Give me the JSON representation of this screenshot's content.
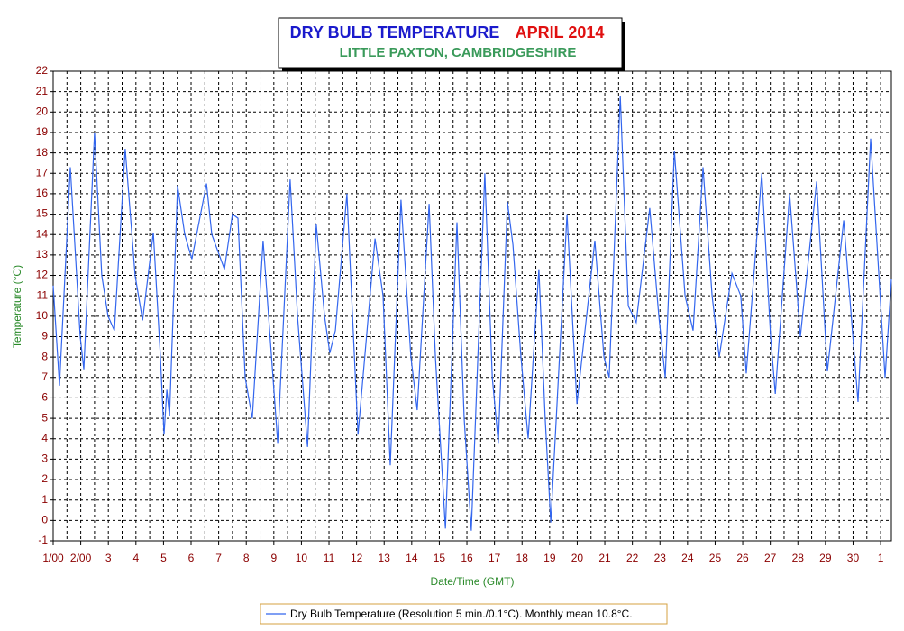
{
  "chart_data": {
    "type": "line",
    "title": "DRY BULB TEMPERATURE",
    "title_period": "APRIL 2014",
    "subtitle": "LITTLE PAXTON, CAMBRIDGESHIRE",
    "ylabel": "Temperature (°C)",
    "xlabel": "Date/Time (GMT)",
    "x": [
      0,
      0.23,
      0.62,
      0.98,
      1.11,
      1.5,
      1.76,
      1.99,
      2.22,
      2.61,
      2.97,
      3.24,
      3.63,
      3.89,
      4.02,
      4.12,
      4.22,
      4.51,
      4.77,
      5.03,
      5.56,
      5.75,
      6.21,
      6.5,
      6.7,
      6.96,
      7.22,
      7.61,
      7.81,
      8.14,
      8.59,
      8.86,
      9.22,
      9.54,
      9.84,
      10.03,
      10.23,
      10.65,
      10.82,
      11.05,
      11.67,
      11.96,
      12.22,
      12.61,
      12.97,
      13.2,
      13.63,
      13.86,
      14.22,
      14.64,
      14.9,
      15.16,
      15.65,
      15.92,
      16.14,
      16.47,
      16.67,
      16.96,
      17.22,
      17.61,
      17.84,
      18.04,
      18.63,
      18.99,
      19.64,
      19.97,
      20.16,
      20.56,
      20.85,
      21.14,
      21.63,
      21.96,
      22.19,
      22.52,
      22.91,
      23.2,
      23.56,
      23.89,
      24.15,
      24.61,
      24.93,
      25.13,
      25.69,
      26.01,
      26.18,
      26.7,
      27.09,
      27.68,
      28.07,
      28.66,
      29.18,
      29.64,
      30.16,
      30.39
    ],
    "series": [
      {
        "name": "Dry Bulb Temperature (Resolution 5 min./0.1°C). Monthly mean 10.8°C.",
        "color": "#3366ee",
        "values": [
          11.5,
          6.6,
          17.3,
          9,
          7.4,
          19,
          12,
          10,
          9.3,
          18.2,
          12,
          9.8,
          14.1,
          8,
          4.2,
          6.4,
          5.1,
          16.4,
          14,
          12.8,
          16.5,
          14,
          12.3,
          15,
          14.8,
          7,
          5,
          13.7,
          10,
          3.8,
          16.7,
          10,
          3.6,
          14.5,
          10,
          8.2,
          9.3,
          16,
          11,
          4.2,
          13.8,
          11,
          2.7,
          15.7,
          8,
          5.4,
          15.5,
          8,
          -0.4,
          14.6,
          5,
          -0.5,
          17,
          7,
          3.8,
          15.6,
          13.5,
          8,
          4,
          12.3,
          5,
          -0.1,
          15,
          5.7,
          13.7,
          8,
          7,
          20.8,
          10.5,
          9.7,
          15.3,
          10,
          7,
          18.1,
          11,
          9.3,
          17.3,
          11,
          8,
          12.1,
          11,
          7.2,
          17,
          9,
          6.2,
          16,
          9,
          16.6,
          7.3,
          14.7,
          5.8,
          18.7,
          7,
          11.8
        ]
      }
    ],
    "xlim": [
      0,
      30.39
    ],
    "xticks": [
      {
        "value": 0,
        "label": "1/00"
      },
      {
        "value": 1,
        "label": "2/00"
      },
      {
        "value": 2,
        "label": "3"
      },
      {
        "value": 3,
        "label": "4"
      },
      {
        "value": 4,
        "label": "5"
      },
      {
        "value": 5,
        "label": "6"
      },
      {
        "value": 6,
        "label": "7"
      },
      {
        "value": 7,
        "label": "8"
      },
      {
        "value": 8,
        "label": "9"
      },
      {
        "value": 9,
        "label": "10"
      },
      {
        "value": 10,
        "label": "11"
      },
      {
        "value": 11,
        "label": "12"
      },
      {
        "value": 12,
        "label": "13"
      },
      {
        "value": 13,
        "label": "14"
      },
      {
        "value": 14,
        "label": "15"
      },
      {
        "value": 15,
        "label": "16"
      },
      {
        "value": 16,
        "label": "17"
      },
      {
        "value": 17,
        "label": "18"
      },
      {
        "value": 18,
        "label": "19"
      },
      {
        "value": 19,
        "label": "20"
      },
      {
        "value": 20,
        "label": "21"
      },
      {
        "value": 21,
        "label": "22"
      },
      {
        "value": 22,
        "label": "23"
      },
      {
        "value": 23,
        "label": "24"
      },
      {
        "value": 24,
        "label": "25"
      },
      {
        "value": 25,
        "label": "26"
      },
      {
        "value": 26,
        "label": "27"
      },
      {
        "value": 27,
        "label": "28"
      },
      {
        "value": 28,
        "label": "29"
      },
      {
        "value": 29,
        "label": "30"
      },
      {
        "value": 30,
        "label": "1"
      }
    ],
    "ylim": [
      -1,
      22
    ],
    "yticks": [
      -1,
      0,
      1,
      2,
      3,
      4,
      5,
      6,
      7,
      8,
      9,
      10,
      11,
      12,
      13,
      14,
      15,
      16,
      17,
      18,
      19,
      20,
      21,
      22
    ],
    "grid": true
  }
}
